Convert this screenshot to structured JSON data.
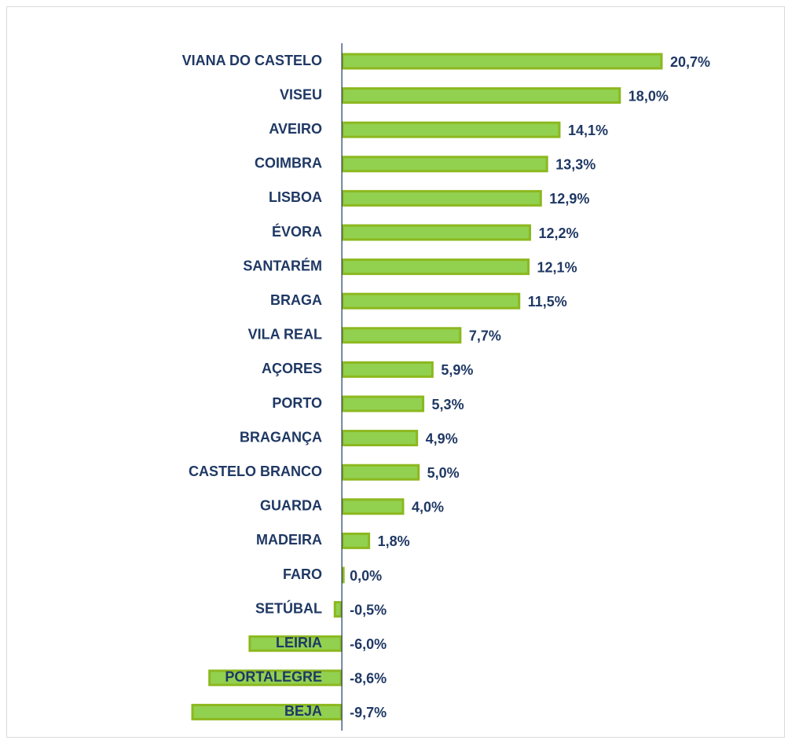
{
  "chart_data": {
    "type": "bar",
    "orientation": "horizontal",
    "categories": [
      "VIANA DO CASTELO",
      "VISEU",
      "AVEIRO",
      "COIMBRA",
      "LISBOA",
      "ÉVORA",
      "SANTARÉM",
      "BRAGA",
      "VILA REAL",
      "AÇORES",
      "PORTO",
      "BRAGANÇA",
      "CASTELO BRANCO",
      "GUARDA",
      "MADEIRA",
      "FARO",
      "SETÚBAL",
      "LEIRIA",
      "PORTALEGRE",
      "BEJA"
    ],
    "values": [
      20.7,
      18.0,
      14.1,
      13.3,
      12.9,
      12.2,
      12.1,
      11.5,
      7.7,
      5.9,
      5.3,
      4.9,
      5.0,
      4.0,
      1.8,
      0.0,
      -0.5,
      -6.0,
      -8.6,
      -9.7
    ],
    "value_labels": [
      "20,7%",
      "18,0%",
      "14,1%",
      "13,3%",
      "12,9%",
      "12,2%",
      "12,1%",
      "11,5%",
      "7,7%",
      "5,9%",
      "5,3%",
      "4,9%",
      "5,0%",
      "4,0%",
      "1,8%",
      "0,0%",
      "-0,5%",
      "-6,0%",
      "-8,6%",
      "-9,7%"
    ],
    "color": "#92d050",
    "edge_color": "#8cb81e"
  }
}
